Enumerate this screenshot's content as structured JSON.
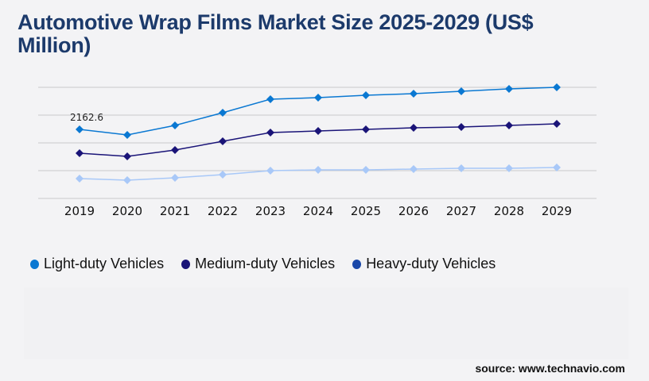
{
  "title": "Automotive Wrap Films Market Size 2025-2029 (US$ Million)",
  "source": "source: www.technavio.com",
  "chart_data": {
    "type": "line",
    "title": "Automotive Wrap Films Market Size 2025-2029 (US$ Million)",
    "x": [
      "2019",
      "2020",
      "2021",
      "2022",
      "2023",
      "2024",
      "2025",
      "2026",
      "2027",
      "2028",
      "2029"
    ],
    "ylim": [
      0,
      3480
    ],
    "grid": true,
    "legend_placement": "bottom-left",
    "annotations": [
      {
        "series": "Light-duty Vehicles",
        "x": "2019",
        "label": "2162.6"
      }
    ],
    "series": [
      {
        "name": "Light-duty Vehicles",
        "color": "#0a78d2",
        "legend_color": "#0a78d2",
        "values": [
          2162.6,
          1989,
          2287,
          2685,
          3108,
          3157,
          3232,
          3282,
          3356,
          3431,
          3480
        ]
      },
      {
        "name": "Medium-duty Vehicles",
        "color": "#1a1478",
        "legend_color": "#1a1478",
        "values": [
          1417,
          1318,
          1516,
          1790,
          2063,
          2113,
          2163,
          2213,
          2237,
          2287,
          2337
        ]
      },
      {
        "name": "Heavy-duty Vehicles",
        "color": "#a8c8f8",
        "legend_color": "#1a47a8",
        "values": [
          622,
          572,
          646,
          746,
          870,
          895,
          895,
          920,
          945,
          945,
          970
        ]
      }
    ]
  }
}
